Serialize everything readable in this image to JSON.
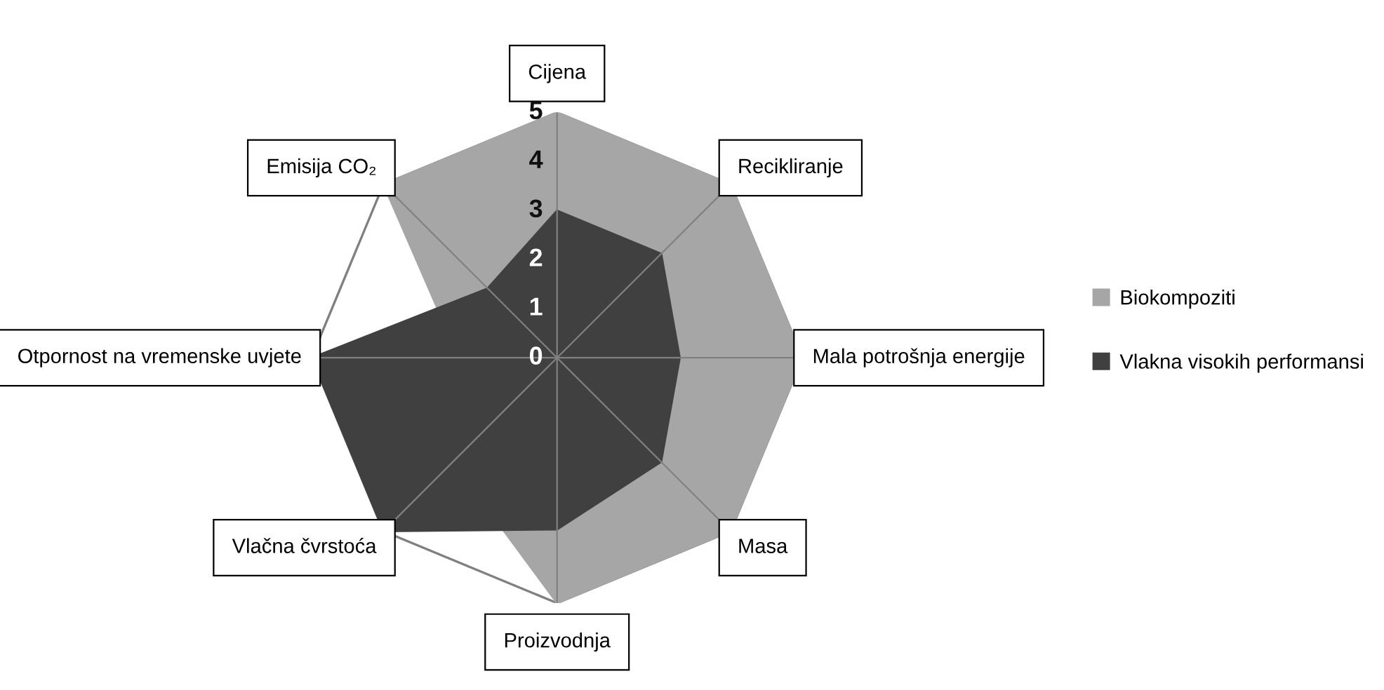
{
  "chart_data": {
    "type": "radar",
    "categories": [
      "Cijena",
      "Recikliranje",
      "Mala potrošnja energije",
      "Masa",
      "Proizvodnja",
      "Vlačna čvrstoća",
      "Otpornost na vremenske uvjete",
      "Emisija CO₂"
    ],
    "series": [
      {
        "name": "Biokompoziti",
        "color": "#a6a6a6",
        "values": [
          5,
          5,
          5,
          5,
          5,
          3,
          2,
          5
        ]
      },
      {
        "name": "Vlakna visokih performansi",
        "color": "#404040",
        "values": [
          3,
          3,
          2.5,
          3,
          3.5,
          5,
          5,
          2
        ]
      }
    ],
    "ylim": [
      0,
      5
    ],
    "yticks": [
      0,
      1,
      2,
      3,
      4,
      5
    ],
    "grid": true,
    "legend": "right",
    "marker": "square"
  }
}
